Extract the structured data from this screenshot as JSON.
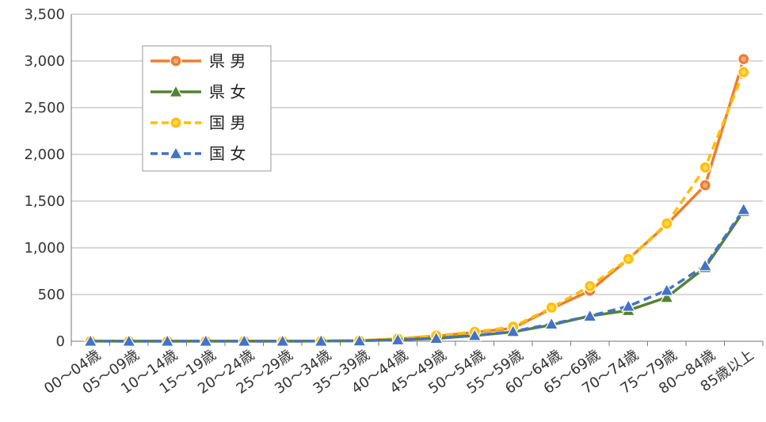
{
  "chart_data": {
    "type": "line",
    "categories": [
      "00～04歳",
      "05～09歳",
      "10～14歳",
      "15～19歳",
      "20～24歳",
      "25～29歳",
      "30～34歳",
      "35～39歳",
      "40～44歳",
      "45～49歳",
      "50～54歳",
      "55～59歳",
      "60～64歳",
      "65～69歳",
      "70～74歳",
      "75～79歳",
      "80～84歳",
      "85歳以上"
    ],
    "y_ticks": [
      "0",
      "500",
      "1,000",
      "1,500",
      "2,000",
      "2,500",
      "3,000",
      "3,500"
    ],
    "ylim": [
      0,
      3500
    ],
    "grid": true,
    "legend_position": "top-left",
    "series": [
      {
        "name": "県 男",
        "color": "#ED7D31",
        "dash": "solid",
        "marker": "circle",
        "values": [
          2,
          1,
          1,
          1,
          1,
          1,
          2,
          6,
          25,
          55,
          95,
          140,
          350,
          540,
          880,
          1250,
          1670,
          3020
        ]
      },
      {
        "name": "県 女",
        "color": "#548235",
        "dash": "solid",
        "marker": "triangle",
        "values": [
          1,
          1,
          1,
          1,
          1,
          1,
          2,
          5,
          15,
          30,
          60,
          100,
          175,
          270,
          330,
          470,
          790,
          1390
        ]
      },
      {
        "name": "国 男",
        "color": "#FFC000",
        "dash": "dashed",
        "marker": "circle",
        "values": [
          2,
          1,
          1,
          1,
          1,
          1,
          2,
          7,
          28,
          60,
          100,
          155,
          360,
          590,
          880,
          1260,
          1860,
          2880
        ]
      },
      {
        "name": "国 女",
        "color": "#4472C4",
        "dash": "dashed",
        "marker": "triangle",
        "values": [
          1,
          1,
          1,
          1,
          1,
          1,
          2,
          5,
          16,
          32,
          62,
          105,
          185,
          270,
          375,
          545,
          810,
          1410
        ]
      }
    ]
  }
}
